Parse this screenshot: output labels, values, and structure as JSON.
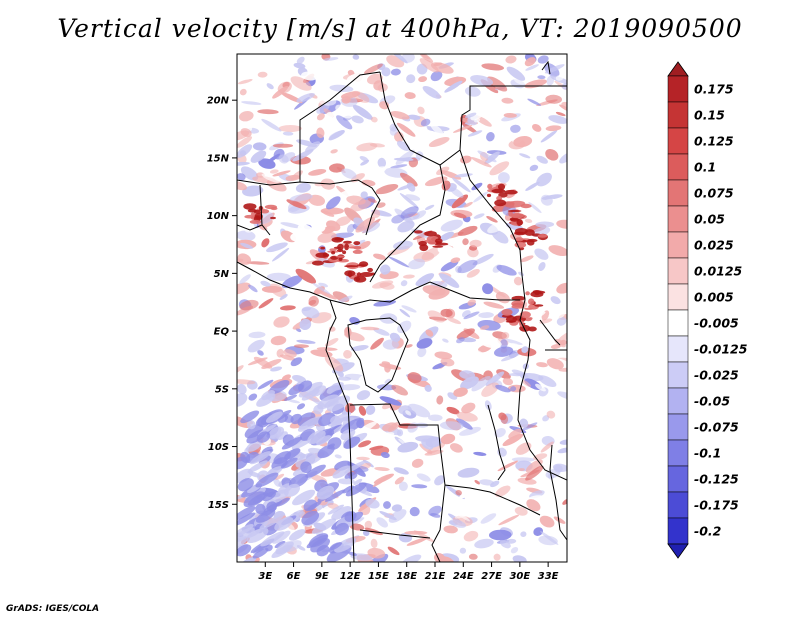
{
  "title": "Vertical velocity [m/s] at 400hPa, VT: 2019090500",
  "footer": "GrADS: IGES/COLA",
  "map": {
    "lat_range": [
      -20,
      24
    ],
    "lon_range": [
      0,
      35
    ],
    "lat_ticks": [
      {
        "value": 20,
        "label": "20N"
      },
      {
        "value": 15,
        "label": "15N"
      },
      {
        "value": 10,
        "label": "10N"
      },
      {
        "value": 5,
        "label": "5N"
      },
      {
        "value": 0,
        "label": "EQ"
      },
      {
        "value": -5,
        "label": "5S"
      },
      {
        "value": -10,
        "label": "10S"
      },
      {
        "value": -15,
        "label": "15S"
      }
    ],
    "lon_ticks": [
      {
        "value": 3,
        "label": "3E"
      },
      {
        "value": 6,
        "label": "6E"
      },
      {
        "value": 9,
        "label": "9E"
      },
      {
        "value": 12,
        "label": "12E"
      },
      {
        "value": 15,
        "label": "15E"
      },
      {
        "value": 18,
        "label": "18E"
      },
      {
        "value": 21,
        "label": "21E"
      },
      {
        "value": 24,
        "label": "24E"
      },
      {
        "value": 27,
        "label": "27E"
      },
      {
        "value": 30,
        "label": "30E"
      },
      {
        "value": 33,
        "label": "33E"
      }
    ]
  },
  "colorbar": {
    "levels": [
      {
        "label": "0.175",
        "color": "#b52327"
      },
      {
        "label": "0.15",
        "color": "#c53434"
      },
      {
        "label": "0.125",
        "color": "#d54545"
      },
      {
        "label": "0.1",
        "color": "#dc5c5c"
      },
      {
        "label": "0.075",
        "color": "#e37575"
      },
      {
        "label": "0.05",
        "color": "#eb8f8f"
      },
      {
        "label": "0.025",
        "color": "#f2aaaa"
      },
      {
        "label": "0.0125",
        "color": "#f7c7c7"
      },
      {
        "label": "0.005",
        "color": "#fbe2e2"
      },
      {
        "label": "-0.005",
        "color": "#ffffff"
      },
      {
        "label": "-0.0125",
        "color": "#e6e6fb"
      },
      {
        "label": "-0.025",
        "color": "#ccccf6"
      },
      {
        "label": "-0.05",
        "color": "#b2b2f1"
      },
      {
        "label": "-0.075",
        "color": "#9999ec"
      },
      {
        "label": "-0.1",
        "color": "#7f7fe6"
      },
      {
        "label": "-0.125",
        "color": "#6666df"
      },
      {
        "label": "-0.175",
        "color": "#4c4cd6"
      },
      {
        "label": "-0.2",
        "color": "#3333cc"
      }
    ],
    "top_color": "#a01e22",
    "bottom_color": "#2020b0"
  },
  "colors": {
    "red_strong": "#b01818",
    "red_mid": "#e07070",
    "red_light": "#f2b0b0",
    "blue_light": "#c8c8f2",
    "blue_mid": "#8c8ce6",
    "blue_strong": "#5a5ad6",
    "background": "#ffffff"
  }
}
